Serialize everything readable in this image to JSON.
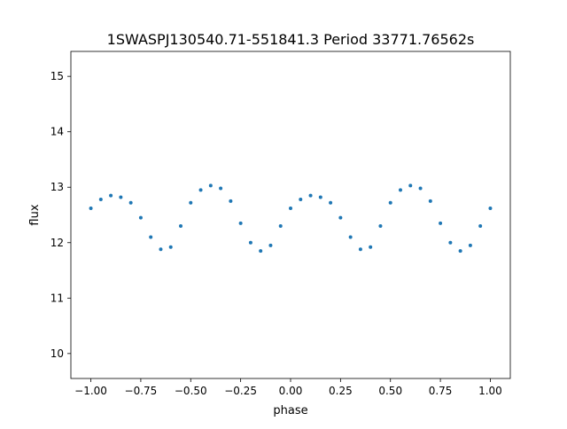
{
  "chart_data": {
    "type": "scatter",
    "title": "1SWASPJ130540.71-551841.3 Period 33771.76562s",
    "xlabel": "phase",
    "ylabel": "flux",
    "xlim": [
      -1.1,
      1.1
    ],
    "ylim": [
      9.55,
      15.45
    ],
    "x_ticks": [
      -1.0,
      -0.75,
      -0.5,
      -0.25,
      0.0,
      0.25,
      0.5,
      0.75,
      1.0
    ],
    "x_tick_labels": [
      "−1.00",
      "−0.75",
      "−0.50",
      "−0.25",
      "0.00",
      "0.25",
      "0.50",
      "0.75",
      "1.00"
    ],
    "y_ticks": [
      10,
      11,
      12,
      13,
      14,
      15
    ],
    "y_tick_labels": [
      "10",
      "11",
      "12",
      "13",
      "14",
      "15"
    ],
    "grid": false,
    "marker_color": "#1f77b4",
    "series": [
      {
        "points": [
          [
            -1.0,
            12.62
          ],
          [
            -0.95,
            12.78
          ],
          [
            -0.9,
            12.85
          ],
          [
            -0.85,
            12.82
          ],
          [
            -0.8,
            12.72
          ],
          [
            -0.75,
            12.45
          ],
          [
            -0.7,
            12.1
          ],
          [
            -0.65,
            11.88
          ],
          [
            -0.6,
            11.92
          ],
          [
            -0.55,
            12.3
          ],
          [
            -0.5,
            12.72
          ],
          [
            -0.45,
            12.95
          ],
          [
            -0.4,
            13.03
          ],
          [
            -0.35,
            12.98
          ],
          [
            -0.3,
            12.75
          ],
          [
            -0.25,
            12.35
          ],
          [
            -0.2,
            12.0
          ],
          [
            -0.15,
            11.85
          ],
          [
            -0.1,
            11.95
          ],
          [
            -0.05,
            12.3
          ],
          [
            0.0,
            12.62
          ],
          [
            0.05,
            12.78
          ],
          [
            0.1,
            12.85
          ],
          [
            0.15,
            12.82
          ],
          [
            0.2,
            12.72
          ],
          [
            0.25,
            12.45
          ],
          [
            0.3,
            12.1
          ],
          [
            0.35,
            11.88
          ],
          [
            0.4,
            11.92
          ],
          [
            0.45,
            12.3
          ],
          [
            0.5,
            12.72
          ],
          [
            0.55,
            12.95
          ],
          [
            0.6,
            13.03
          ],
          [
            0.65,
            12.98
          ],
          [
            0.7,
            12.75
          ],
          [
            0.75,
            12.35
          ],
          [
            0.8,
            12.0
          ],
          [
            0.85,
            11.85
          ],
          [
            0.9,
            11.95
          ],
          [
            0.95,
            12.3
          ],
          [
            1.0,
            12.62
          ]
        ]
      }
    ]
  }
}
